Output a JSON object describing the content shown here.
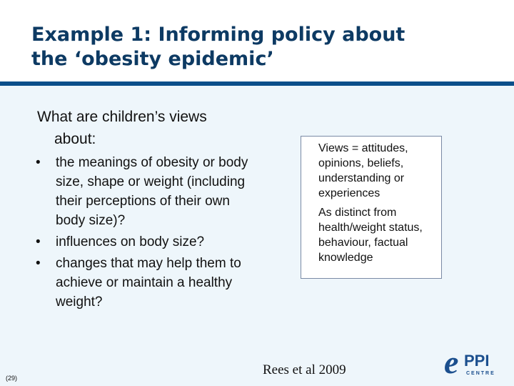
{
  "slide": {
    "title_lines": [
      "Example 1: Informing policy about",
      "the ‘obesity epidemic’"
    ],
    "question": "What are children’s views about:",
    "bullets": [
      "the meanings of obesity or body size, shape or weight (including their perceptions of their own body size)?",
      "influences on body size?",
      "changes that may help them to achieve or maintain a healthy weight?"
    ],
    "bullet_symbol": "•",
    "definition_box": {
      "paragraphs": [
        "Views = attitudes, opinions, beliefs, understanding or experiences",
        "As distinct from health/weight status, behaviour, factual knowledge"
      ]
    },
    "citation": "Rees et al 2009",
    "slide_number": "(29)",
    "logo": {
      "letter": "e",
      "wordmark": "PPI",
      "subtext": "CENTRE",
      "icon": "eppi-centre-logo"
    }
  },
  "colors": {
    "title": "#0d3a63",
    "divider": "#0b4f8a",
    "panel_background": "#eef6fb",
    "box_border": "#7a8aa5",
    "logo": "#1b4f8e"
  }
}
